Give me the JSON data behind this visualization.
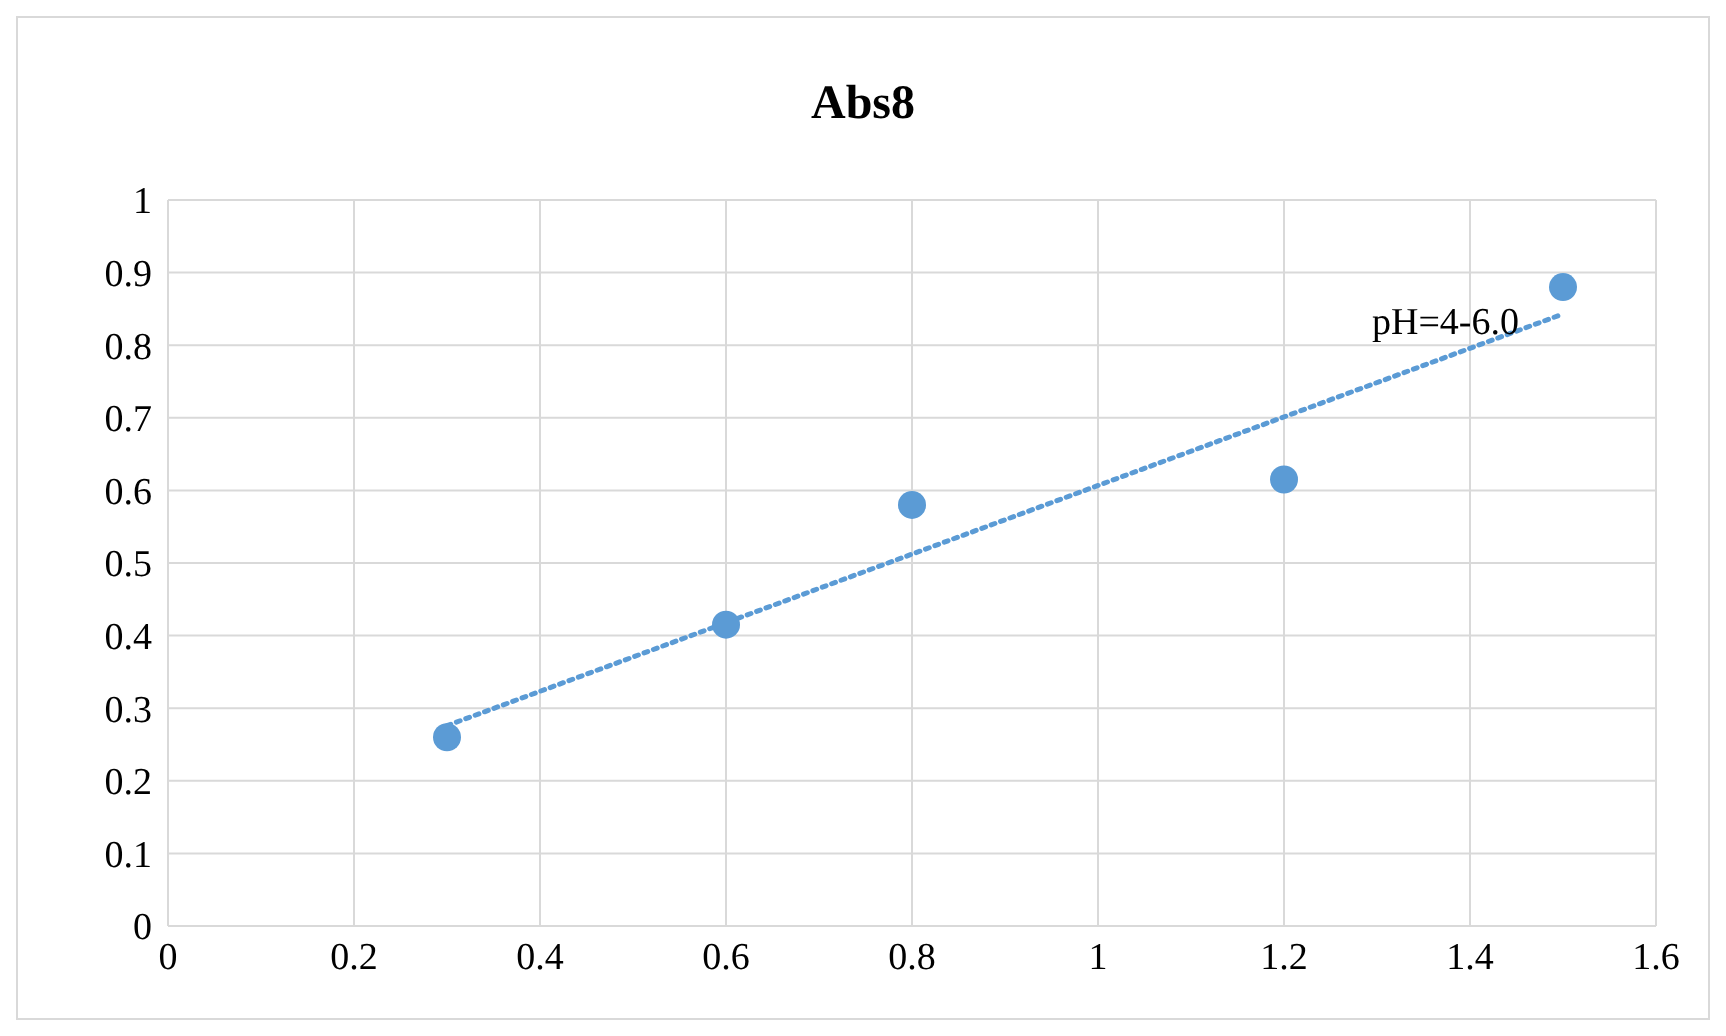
{
  "chart_data": {
    "type": "scatter",
    "title": "Abs8",
    "x": [
      0.3,
      0.6,
      0.8,
      1.2,
      1.5
    ],
    "series": [
      {
        "color": "#5b9bd5",
        "values": [
          0.26,
          0.415,
          0.58,
          0.615,
          0.88
        ],
        "marker": "circle"
      },
      {
        "type": "line",
        "name": "pH=4-6.0",
        "color": "#5b9bd5",
        "x": [
          0.3,
          1.5
        ],
        "values": [
          0.276,
          0.843
        ],
        "line_style": "dotted",
        "marker": "none"
      }
    ],
    "xlim": [
      0,
      1.6
    ],
    "xticks": [
      0,
      0.2,
      0.4,
      0.6,
      0.8,
      1,
      1.2,
      1.4,
      1.6
    ],
    "ylim": [
      0,
      1
    ],
    "yticks": [
      0,
      0.1,
      0.2,
      0.3,
      0.4,
      0.5,
      0.6,
      0.7,
      0.8,
      0.9,
      1
    ],
    "grid": true
  }
}
